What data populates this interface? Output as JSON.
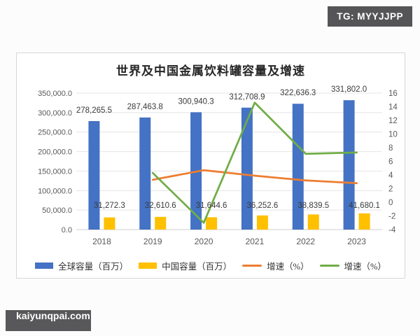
{
  "badges": {
    "tg": "TG: MYYJJPP",
    "site": "kaiyunqpai.com"
  },
  "chart_data": {
    "type": "bar",
    "title": "世界及中国金属饮料罐容量及增速",
    "categories": [
      "2018",
      "2019",
      "2020",
      "2021",
      "2022",
      "2023"
    ],
    "series": [
      {
        "name": "全球容量（百万）",
        "type": "bar",
        "axis": "left",
        "color": "#4472C4",
        "values": [
          278265.5,
          287463.8,
          300940.3,
          312708.9,
          322636.3,
          331802.0
        ],
        "labels": [
          "278,265.5",
          "287,463.8",
          "300,940.3",
          "312,708.9",
          "322,636.3",
          "331,802.0"
        ]
      },
      {
        "name": "中国容量（百万）",
        "type": "bar",
        "axis": "left",
        "color": "#FFC000",
        "values": [
          31272.3,
          32610.6,
          31644.6,
          36252.6,
          38839.5,
          41680.1
        ],
        "labels": [
          "31,272.3",
          "32,610.6",
          "31,644.6",
          "36,252.6",
          "38,839.5",
          "41,680.1"
        ]
      },
      {
        "name": "增速（%）",
        "type": "line",
        "axis": "right",
        "color": "#ED7D31",
        "values": [
          null,
          3.3,
          4.7,
          3.9,
          3.2,
          2.8
        ]
      },
      {
        "name": "增速（%）",
        "type": "line",
        "axis": "right",
        "color": "#70AD47",
        "values": [
          null,
          4.3,
          -3.0,
          14.6,
          7.1,
          7.3
        ]
      }
    ],
    "left_axis": {
      "min": 0,
      "max": 350000,
      "step": 50000,
      "tick_labels": [
        "0.0",
        "50,000.0",
        "100,000.0",
        "150,000.0",
        "200,000.0",
        "250,000.0",
        "300,000.0",
        "350,000.0"
      ]
    },
    "right_axis": {
      "min": -4,
      "max": 16,
      "step": 2,
      "tick_labels": [
        "16",
        "14",
        "12",
        "10",
        "8",
        "6",
        "4",
        "2",
        "0",
        "-2",
        "-4"
      ]
    },
    "legend_position": "bottom",
    "grid": true,
    "bar_labels": true
  }
}
